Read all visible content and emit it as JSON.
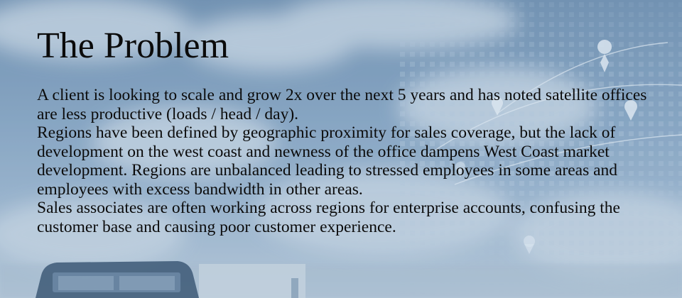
{
  "slide": {
    "title": "The Problem",
    "paragraphs": [
      "A client is looking to scale and grow 2x over the next 5 years and has noted satellite offices are less productive (loads / head / day).",
      "Regions have been defined by geographic proximity for sales coverage, but the lack of development on the west coast and newness of the office dampens West Coast market development.  Regions are unbalanced leading to stressed employees in some areas and employees with excess bandwidth in other areas.",
      "Sales associates are often working across regions for enterprise accounts, confusing the customer base and causing poor customer experience."
    ]
  },
  "background": {
    "sky_color": "#7d9bbb",
    "cloud_color": "#c9d6e3",
    "map_dot_color": "#a9c0d6",
    "pin_color": "#e4ecf4",
    "truck_color": "#2e4a68"
  }
}
